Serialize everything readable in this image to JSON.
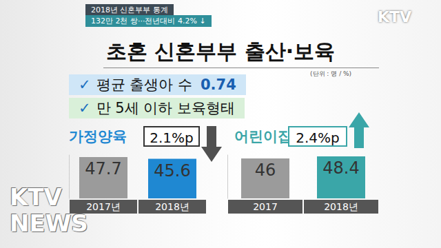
{
  "header": {
    "title": "2018년 신혼부부 통계",
    "subtitle": "132만 2천 쌍···전년대비 4.2% ↓"
  },
  "logo": "KTV",
  "watermark": "KTV NEWS",
  "title": "초혼 신혼부부 출산·보육",
  "unit": "(단위 : 명 / %)",
  "notes": [
    {
      "text": "✓ 평균 출생아 수",
      "value": 0.74
    },
    {
      "text": "✓ 만 5세 이하 보육형태"
    }
  ],
  "chart_data": [
    {
      "type": "bar",
      "title": "가정양육",
      "categories": [
        "2017년",
        "2018년"
      ],
      "values": [
        47.7,
        45.6
      ],
      "colors": [
        "#9b9b9b",
        "#1f88d2"
      ],
      "ylim": [
        0,
        50
      ],
      "data_labels": true,
      "tick_labels": "x",
      "annotation": "2.1%p"
    },
    {
      "type": "bar",
      "title": "어린이집",
      "categories": [
        "2017",
        "2018년"
      ],
      "values": [
        46,
        48.4
      ],
      "colors": [
        "#9b9b9b",
        "#3aa6a8"
      ],
      "ylim": [
        0,
        50
      ],
      "data_labels": true,
      "tick_labels": "x",
      "annotation": "2.4%p"
    }
  ]
}
